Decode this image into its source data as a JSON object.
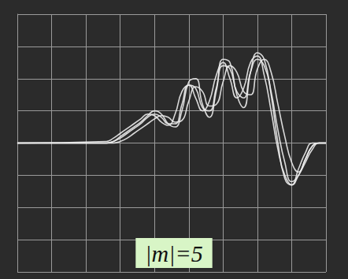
{
  "chart_data": {
    "type": "line",
    "annotation": "|m|=5",
    "x": [
      0,
      2.6,
      2.8,
      3.0,
      3.2,
      3.4,
      3.6,
      3.8,
      4.0,
      4.2,
      4.4,
      4.6,
      4.8,
      5.0,
      5.2,
      5.4,
      5.6,
      5.8,
      6.0,
      6.2,
      6.4,
      6.6,
      6.8,
      7.0,
      7.2,
      7.4,
      7.6,
      7.8,
      8.0,
      8.2,
      8.4,
      8.6,
      8.8,
      9
    ],
    "series": [
      {
        "color": "#ececec",
        "values": [
          0,
          0,
          0.05,
          0.15,
          0.3,
          0.45,
          0.6,
          0.8,
          0.9,
          0.8,
          0.6,
          0.6,
          1.2,
          1.8,
          1.7,
          1.1,
          1.0,
          1.7,
          2.4,
          2.3,
          1.6,
          1.4,
          2.2,
          2.6,
          2.4,
          1.6,
          0.4,
          -0.6,
          -1.2,
          -1.0,
          -0.5,
          -0.1,
          0,
          0
        ]
      },
      {
        "color": "#ececec",
        "values": [
          0,
          0,
          0,
          0.05,
          0.15,
          0.3,
          0.45,
          0.6,
          0.75,
          0.85,
          0.8,
          0.65,
          0.7,
          1.3,
          1.75,
          1.6,
          1.15,
          1.2,
          1.9,
          2.4,
          2.2,
          1.6,
          1.5,
          2.3,
          2.6,
          2.2,
          1.2,
          0.2,
          -0.6,
          -0.9,
          -0.5,
          -0.1,
          0,
          0
        ]
      },
      {
        "color": "#ececec",
        "values": [
          0,
          0.05,
          0.15,
          0.3,
          0.45,
          0.6,
          0.75,
          0.9,
          0.85,
          0.65,
          0.55,
          0.9,
          1.6,
          1.8,
          1.4,
          1.0,
          1.3,
          2.1,
          2.5,
          2.0,
          1.4,
          1.7,
          2.5,
          2.7,
          2.1,
          1.0,
          -0.2,
          -1.0,
          -1.3,
          -0.8,
          -0.3,
          0,
          0,
          0
        ]
      },
      {
        "color": "#ececec",
        "values": [
          0,
          0,
          0.05,
          0.2,
          0.35,
          0.5,
          0.65,
          0.85,
          1.0,
          0.9,
          0.6,
          0.5,
          1.0,
          1.9,
          2.0,
          1.2,
          0.8,
          1.6,
          2.6,
          2.5,
          1.5,
          1.1,
          2.2,
          2.8,
          2.6,
          1.5,
          0.0,
          -1.1,
          -1.3,
          -1.0,
          -0.6,
          -0.2,
          0,
          0
        ]
      }
    ],
    "xlim": [
      0,
      9
    ],
    "xticks": [
      0,
      1,
      2,
      3,
      4,
      5,
      6,
      7,
      8,
      9
    ],
    "ylim": [
      -4,
      4
    ],
    "yticks": [
      -4,
      -3,
      -2,
      -1,
      0,
      1,
      2,
      3,
      4
    ],
    "grid": true,
    "tick_labels": false
  }
}
